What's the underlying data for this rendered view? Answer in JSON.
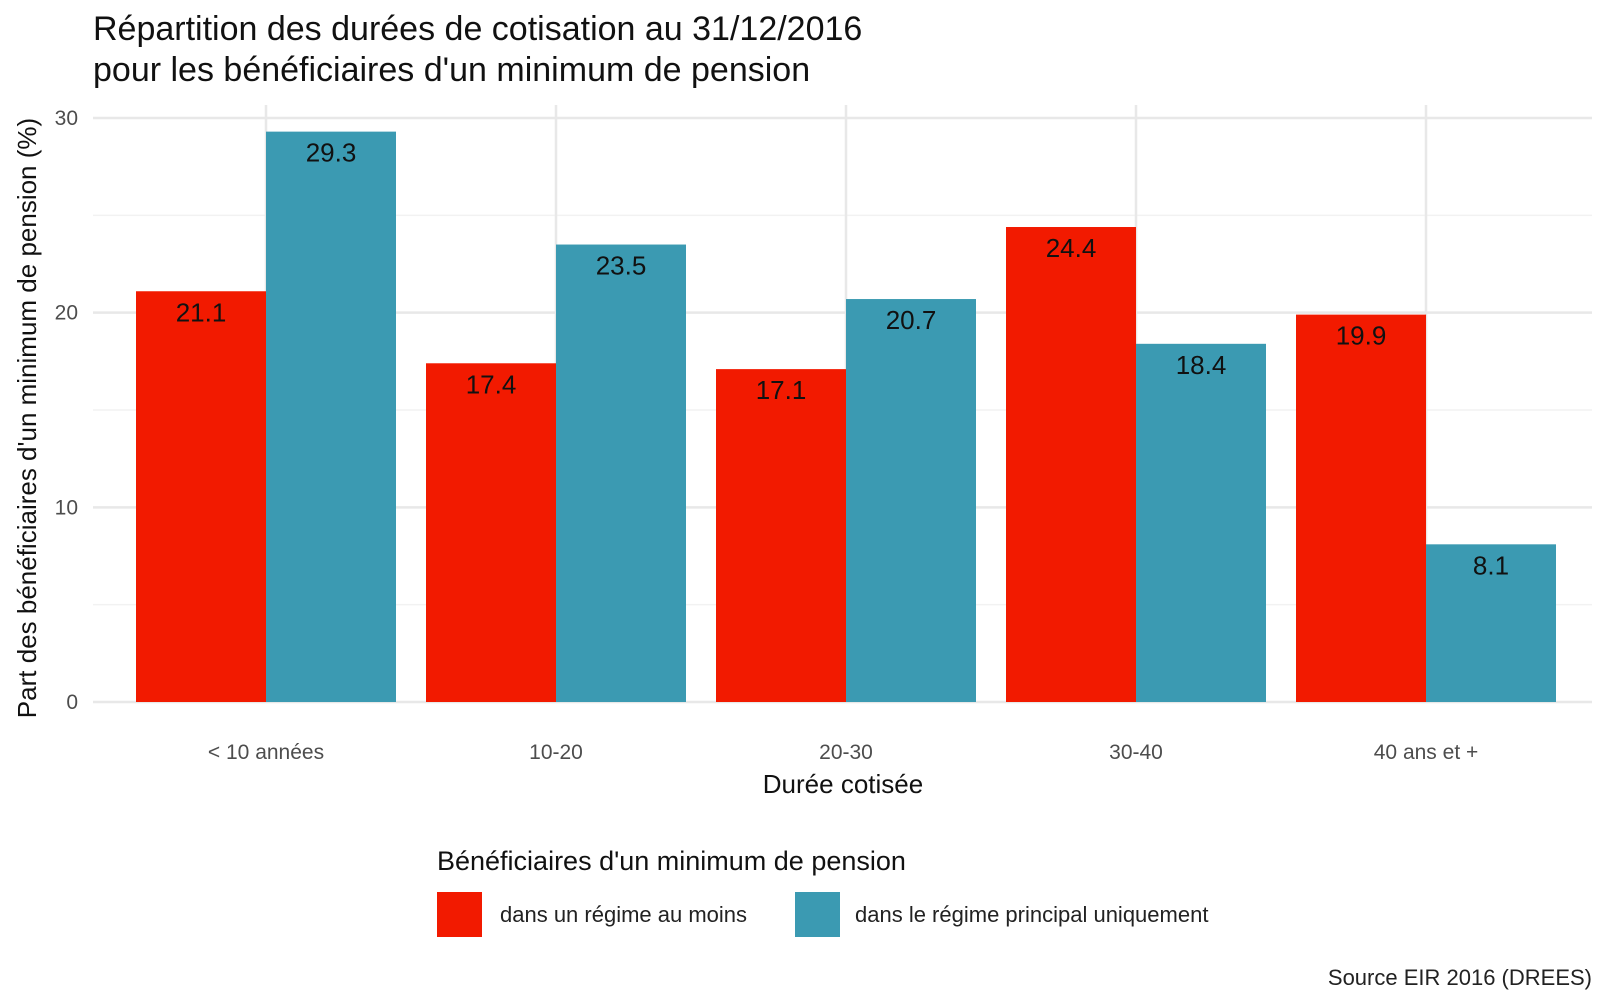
{
  "chart_data": {
    "type": "bar",
    "title": "Répartition des durées de cotisation au 31/12/2016",
    "subtitle": "pour les bénéficiaires d'un minimum de pension",
    "xlabel": "Durée cotisée",
    "ylabel": "Part des bénéficiaires d'un minimum de pension (%)",
    "categories": [
      "< 10 années",
      "10-20",
      "20-30",
      "30-40",
      "40 ans et +"
    ],
    "series": [
      {
        "name": "dans un régime au moins",
        "color": "#F21A00",
        "values": [
          21.1,
          17.4,
          17.1,
          24.4,
          19.9
        ],
        "labels": [
          "21.1",
          "17.4",
          "17.1",
          "24.4",
          "19.9"
        ]
      },
      {
        "name": "dans le régime principal uniquement",
        "color": "#3B9AB2",
        "values": [
          29.3,
          23.5,
          20.7,
          18.4,
          8.1
        ],
        "labels": [
          "29.3",
          "23.5",
          "20.7",
          "18.4",
          "8.1"
        ]
      }
    ],
    "y_ticks": [
      "0",
      "10",
      "20",
      "30"
    ],
    "ylim": [
      0,
      30
    ],
    "grid": true,
    "legend_title": "Bénéficiaires d'un minimum de pension",
    "legend_position": "bottom",
    "caption": "Source EIR 2016 (DREES)"
  }
}
